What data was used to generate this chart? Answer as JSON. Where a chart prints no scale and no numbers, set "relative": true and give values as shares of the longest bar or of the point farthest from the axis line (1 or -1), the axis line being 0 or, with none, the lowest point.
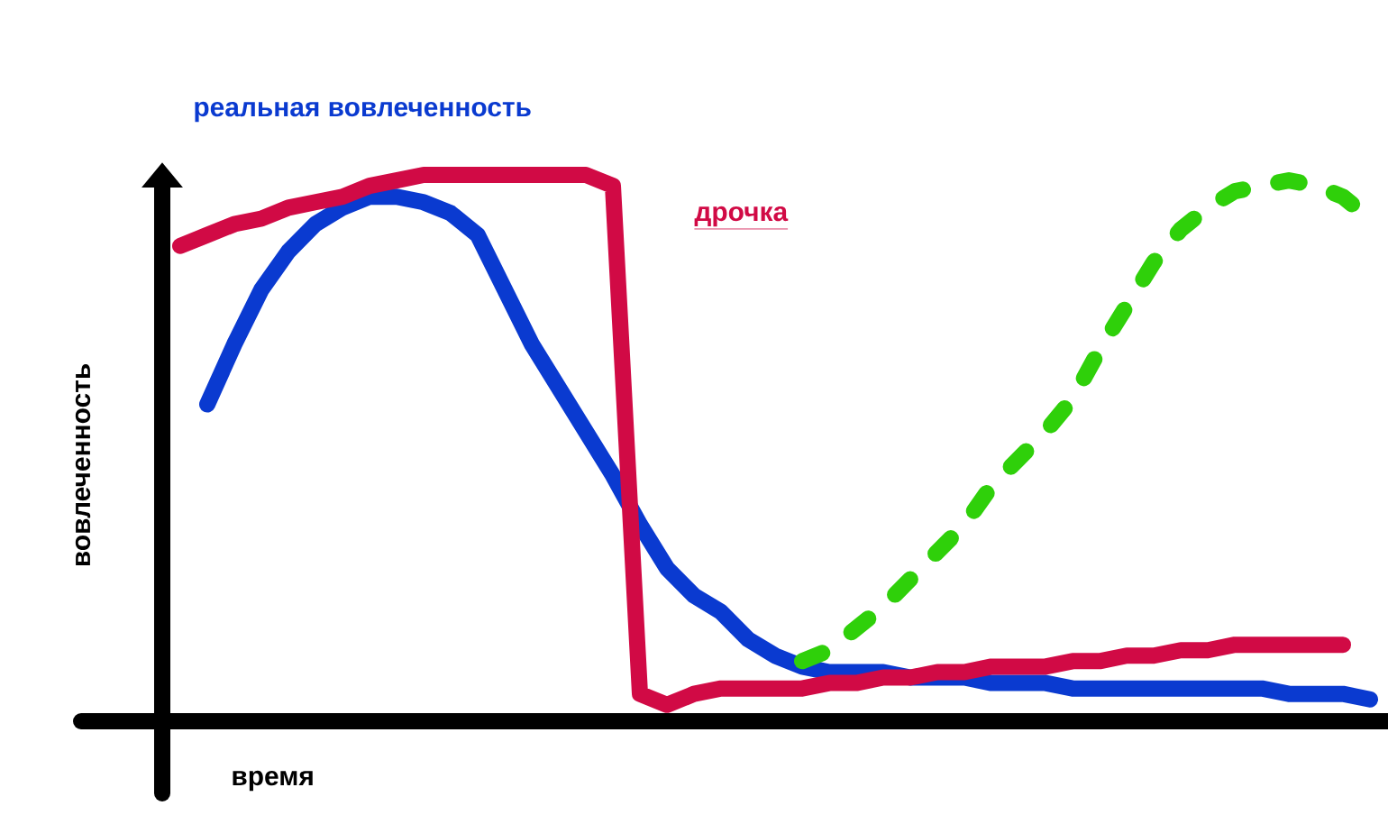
{
  "chart_data": {
    "type": "line",
    "relative": true,
    "xlabel": "время",
    "ylabel": "вовлеченность",
    "categories": [
      null,
      null,
      null,
      null,
      null,
      null,
      null,
      null,
      null,
      null,
      null,
      null,
      null,
      null,
      null,
      null,
      null,
      null,
      null,
      null,
      null,
      null,
      null,
      null,
      null,
      null,
      null,
      null,
      null,
      null,
      null,
      null,
      null,
      null,
      null,
      null,
      null,
      null,
      null,
      null,
      null,
      null,
      null,
      null,
      null
    ],
    "series": [
      {
        "name": "реальная вовлеченность",
        "color": "#0a3ad0",
        "values": [
          null,
          0.58,
          0.69,
          0.79,
          0.86,
          0.91,
          0.94,
          0.96,
          0.96,
          0.95,
          0.93,
          0.89,
          0.79,
          0.69,
          0.61,
          0.53,
          0.45,
          0.36,
          0.28,
          0.23,
          0.2,
          0.15,
          0.12,
          0.1,
          0.09,
          0.09,
          0.09,
          0.08,
          0.08,
          0.08,
          0.07,
          0.07,
          0.07,
          0.06,
          0.06,
          0.06,
          0.06,
          0.06,
          0.06,
          0.06,
          0.06,
          0.05,
          0.05,
          0.05,
          0.04
        ]
      },
      {
        "name": "дрочка",
        "color": "#d10a45",
        "values": [
          0.87,
          0.89,
          0.91,
          0.92,
          0.94,
          0.95,
          0.96,
          0.98,
          0.99,
          1.0,
          1.0,
          1.0,
          1.0,
          1.0,
          1.0,
          1.0,
          0.98,
          0.05,
          0.03,
          0.05,
          0.06,
          0.06,
          0.06,
          0.06,
          0.07,
          0.07,
          0.08,
          0.08,
          0.09,
          0.09,
          0.1,
          0.1,
          0.1,
          0.11,
          0.11,
          0.12,
          0.12,
          0.13,
          0.13,
          0.14,
          0.14,
          0.14,
          0.14,
          0.14,
          null
        ]
      },
      {
        "color": "#2fd00a",
        "line_style": "dashed",
        "values": [
          null,
          null,
          null,
          null,
          null,
          null,
          null,
          null,
          null,
          null,
          null,
          null,
          null,
          null,
          null,
          null,
          null,
          null,
          null,
          null,
          null,
          null,
          null,
          0.11,
          0.13,
          0.17,
          0.21,
          0.26,
          0.31,
          0.36,
          0.43,
          0.48,
          0.53,
          0.59,
          0.68,
          0.76,
          0.84,
          0.9,
          0.94,
          0.97,
          0.98,
          0.99,
          0.98,
          0.96,
          0.92
        ]
      }
    ]
  }
}
